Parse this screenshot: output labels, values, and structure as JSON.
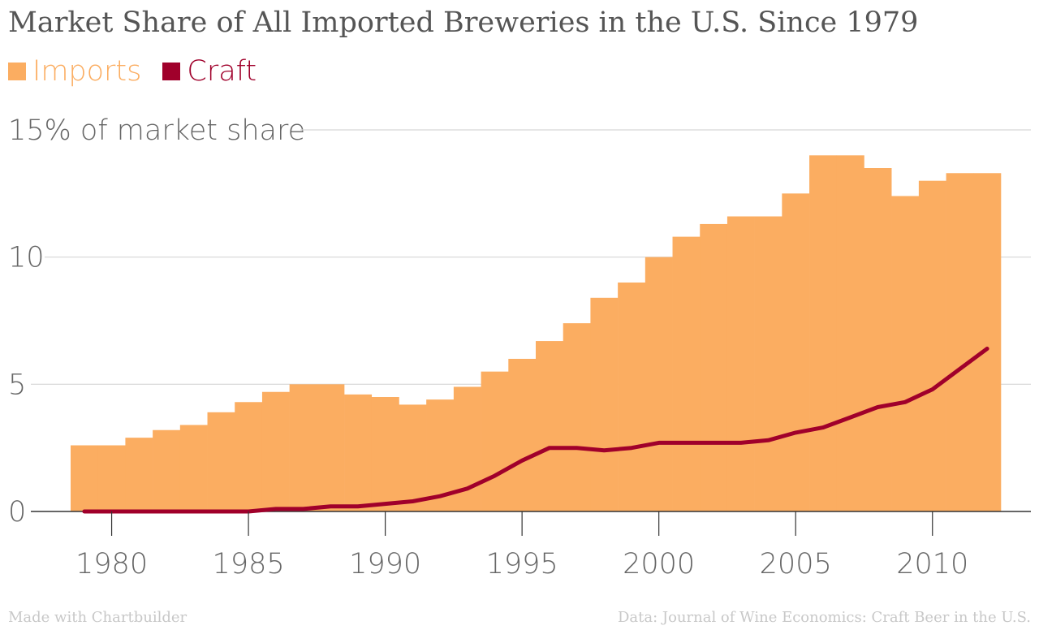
{
  "chart_data": {
    "type": "area",
    "title": "Market Share of All Imported Breweries in the U.S. Since 1979",
    "ylabel": "15% of market share",
    "ylim": [
      0,
      15
    ],
    "y_ticks": [
      {
        "value": 0,
        "label": "0"
      },
      {
        "value": 5,
        "label": "5"
      },
      {
        "value": 10,
        "label": "10"
      },
      {
        "value": 15,
        "label": "15% of market share"
      }
    ],
    "x_ticks": [
      {
        "value": 1980,
        "label": "1980"
      },
      {
        "value": 1985,
        "label": "1985"
      },
      {
        "value": 1990,
        "label": "1990"
      },
      {
        "value": 1995,
        "label": "1995"
      },
      {
        "value": 2000,
        "label": "2000"
      },
      {
        "value": 2005,
        "label": "2005"
      },
      {
        "value": 2010,
        "label": "2010"
      }
    ],
    "xlim": [
      1978.5,
      2012.5
    ],
    "grid": true,
    "legend_position": "top-left",
    "x": [
      1979,
      1980,
      1981,
      1982,
      1983,
      1984,
      1985,
      1986,
      1987,
      1988,
      1989,
      1990,
      1991,
      1992,
      1993,
      1994,
      1995,
      1996,
      1997,
      1998,
      1999,
      2000,
      2001,
      2002,
      2003,
      2004,
      2005,
      2006,
      2007,
      2008,
      2009,
      2010,
      2011,
      2012
    ],
    "series": [
      {
        "name": "Imports",
        "type": "step-area",
        "color": "#fbad61",
        "values": [
          2.6,
          2.6,
          2.9,
          3.2,
          3.4,
          3.9,
          4.3,
          4.7,
          5.0,
          5.0,
          4.6,
          4.5,
          4.2,
          4.4,
          4.9,
          5.5,
          6.0,
          6.7,
          7.4,
          8.4,
          9.0,
          10.0,
          10.8,
          11.3,
          11.6,
          11.6,
          12.5,
          14.0,
          14.0,
          13.5,
          12.4,
          13.0,
          13.3,
          13.3
        ]
      },
      {
        "name": "Craft",
        "type": "line",
        "color": "#a0002b",
        "values": [
          0,
          0,
          0,
          0,
          0,
          0,
          0,
          0.1,
          0.1,
          0.2,
          0.2,
          0.3,
          0.4,
          0.6,
          0.9,
          1.4,
          2.0,
          2.5,
          2.5,
          2.4,
          2.5,
          2.7,
          2.7,
          2.7,
          2.7,
          2.8,
          3.1,
          3.3,
          3.7,
          4.1,
          4.3,
          4.8,
          5.6,
          6.4
        ]
      }
    ]
  },
  "footer": {
    "left": "Made with Chartbuilder",
    "right": "Data: Journal of Wine Economics: Craft Beer in the U.S."
  }
}
